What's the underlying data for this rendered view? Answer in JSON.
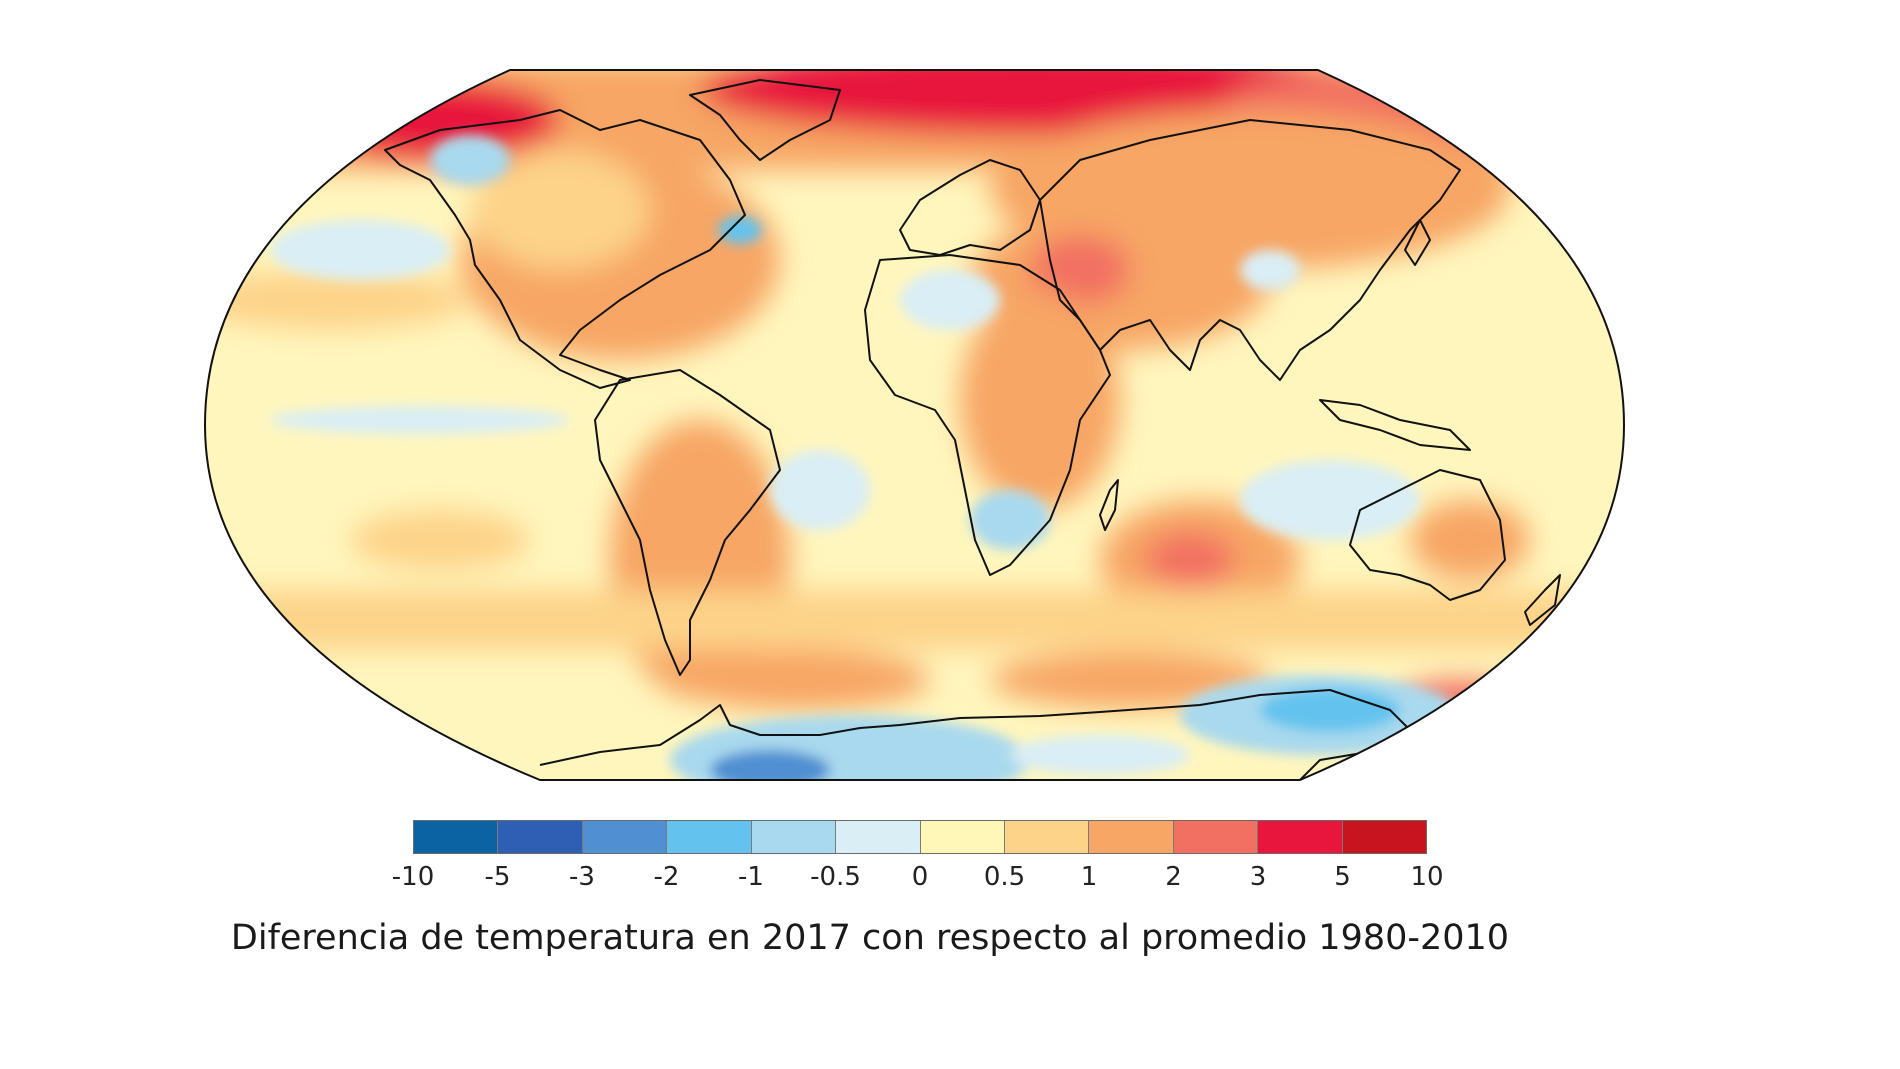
{
  "caption": "Diferencia de temperatura en 2017 con respecto al promedio 1980-2010",
  "legend": {
    "ticks": [
      "-10",
      "-5",
      "-3",
      "-2",
      "-1",
      "-0.5",
      "0",
      "0.5",
      "1",
      "2",
      "3",
      "5",
      "10"
    ],
    "colors": [
      "#0a64a4",
      "#2f5fb4",
      "#4f8fd2",
      "#64c3ee",
      "#a9d9ee",
      "#d9eef5",
      "#fff7b8",
      "#fdd389",
      "#f7a665",
      "#f27062",
      "#e8163c",
      "#c8141f"
    ]
  },
  "map": {
    "ocean_color": "#fff6bd",
    "continents": [
      "North America",
      "South America",
      "Europe",
      "Africa",
      "Asia",
      "Australia",
      "Antarctica"
    ]
  }
}
